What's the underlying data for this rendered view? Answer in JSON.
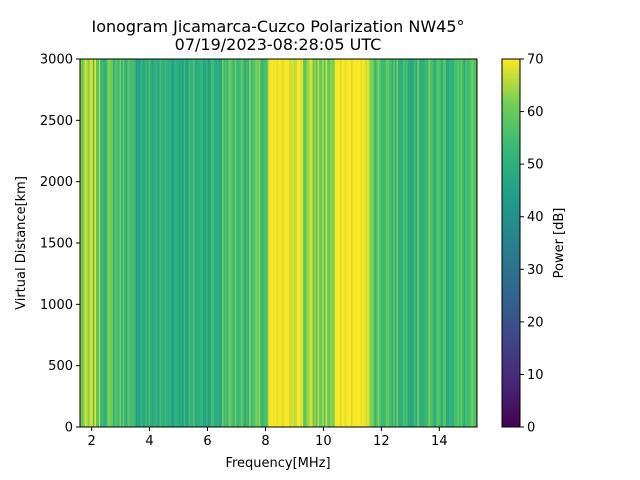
{
  "chart_data": {
    "type": "heatmap",
    "title_line1": "Ionogram Jicamarca-Cuzco Polarization NW45°",
    "title_line2": "07/19/2023-08:28:05 UTC",
    "xlabel": "Frequency[MHz]",
    "ylabel": "Virtual Distance[km]",
    "colorbar_label": "Power [dB]",
    "colormap": "viridis",
    "xlim": [
      1.6,
      15.3
    ],
    "ylim": [
      0,
      3000
    ],
    "clim": [
      0,
      70
    ],
    "x_ticks": [
      2,
      4,
      6,
      8,
      10,
      12,
      14
    ],
    "y_ticks": [
      0,
      500,
      1000,
      1500,
      2000,
      2500,
      3000
    ],
    "colorbar_ticks": [
      0,
      10,
      20,
      30,
      40,
      50,
      60,
      70
    ],
    "grid": false,
    "frequency_bands": [
      {
        "x": [
          1.6,
          2.3
        ],
        "power_db": 62
      },
      {
        "x": [
          2.3,
          3.3
        ],
        "power_db": 56
      },
      {
        "x": [
          3.3,
          6.5
        ],
        "power_db": 50
      },
      {
        "x": [
          6.5,
          8.1
        ],
        "power_db": 56
      },
      {
        "x": [
          8.1,
          9.3
        ],
        "power_db": 69
      },
      {
        "x": [
          9.3,
          10.4
        ],
        "power_db": 62
      },
      {
        "x": [
          10.4,
          11.6
        ],
        "power_db": 70
      },
      {
        "x": [
          11.6,
          12.3
        ],
        "power_db": 58
      },
      {
        "x": [
          12.3,
          15.3
        ],
        "power_db": 54
      }
    ]
  }
}
